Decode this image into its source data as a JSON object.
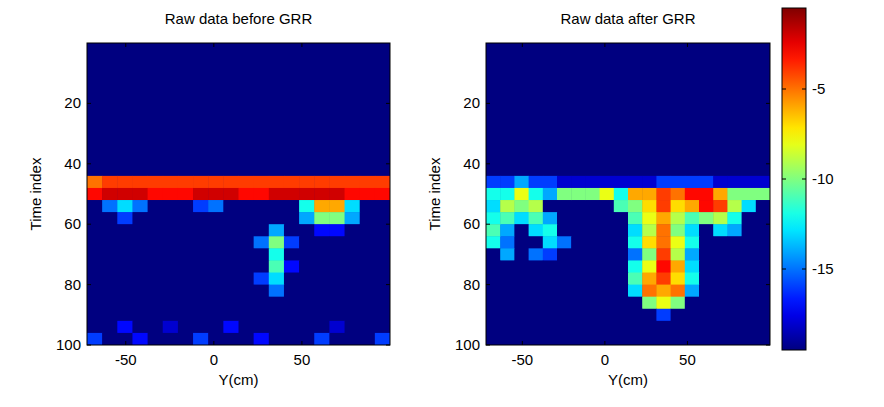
{
  "chart_data": [
    {
      "type": "heatmap",
      "title": "Raw data before GRR",
      "xlabel": "Y(cm)",
      "ylabel": "Time index",
      "xlim": [
        -72,
        100
      ],
      "xticks": [
        -50,
        0,
        50
      ],
      "ylim": [
        0,
        100
      ],
      "yticks": [
        20,
        40,
        60,
        80,
        100
      ],
      "color_range": [
        -19.5,
        -0.5
      ],
      "color_ticks": [
        -5,
        -10,
        -15
      ],
      "cells": [
        [
          -19.5,
          -19.5,
          -19.5,
          -19.5,
          -19.5,
          -19.5,
          -19.5,
          -19.5,
          -19.5,
          -19.5,
          -19.5,
          -19.5,
          -19.5,
          -19.5,
          -19.5,
          -19.5,
          -19.5,
          -19.5,
          -19.5,
          -19.5
        ],
        [
          -19.5,
          -19.5,
          -19.5,
          -19.5,
          -19.5,
          -19.5,
          -19.5,
          -19.5,
          -19.5,
          -19.5,
          -19.5,
          -19.5,
          -19.5,
          -19.5,
          -19.5,
          -19.5,
          -19.5,
          -19.5,
          -19.5,
          -19.5
        ],
        [
          -19.5,
          -19.5,
          -19.5,
          -19.5,
          -19.5,
          -19.5,
          -19.5,
          -19.5,
          -19.5,
          -19.5,
          -19.5,
          -19.5,
          -19.5,
          -19.5,
          -19.5,
          -19.5,
          -19.5,
          -19.5,
          -19.5,
          -19.5
        ],
        [
          -19.5,
          -19.5,
          -19.5,
          -19.5,
          -19.5,
          -19.5,
          -19.5,
          -19.5,
          -19.5,
          -19.5,
          -19.5,
          -19.5,
          -19.5,
          -19.5,
          -19.5,
          -19.5,
          -19.5,
          -19.5,
          -19.5,
          -19.5
        ],
        [
          -19.5,
          -19.5,
          -19.5,
          -19.5,
          -19.5,
          -19.5,
          -19.5,
          -19.5,
          -19.5,
          -19.5,
          -19.5,
          -19.5,
          -19.5,
          -19.5,
          -19.5,
          -19.5,
          -19.5,
          -19.5,
          -19.5,
          -19.5
        ],
        [
          -19.5,
          -19.5,
          -19.5,
          -19.5,
          -19.5,
          -19.5,
          -19.5,
          -19.5,
          -19.5,
          -19.5,
          -19.5,
          -19.5,
          -19.5,
          -19.5,
          -19.5,
          -19.5,
          -19.5,
          -19.5,
          -19.5,
          -19.5
        ],
        [
          -19.5,
          -19.5,
          -19.5,
          -19.5,
          -19.5,
          -19.5,
          -19.5,
          -19.5,
          -19.5,
          -19.5,
          -19.5,
          -19.5,
          -19.5,
          -19.5,
          -19.5,
          -19.5,
          -19.5,
          -19.5,
          -19.5,
          -19.5
        ],
        [
          -19.5,
          -19.5,
          -19.5,
          -19.5,
          -19.5,
          -19.5,
          -19.5,
          -19.5,
          -19.5,
          -19.5,
          -19.5,
          -19.5,
          -19.5,
          -19.5,
          -19.5,
          -19.5,
          -19.5,
          -19.5,
          -19.5,
          -19.5
        ],
        [
          -19.5,
          -19.5,
          -19.5,
          -19.5,
          -19.5,
          -19.5,
          -19.5,
          -19.5,
          -19.5,
          -19.5,
          -19.5,
          -19.5,
          -19.5,
          -19.5,
          -19.5,
          -19.5,
          -19.5,
          -19.5,
          -19.5,
          -19.5
        ],
        [
          -19.5,
          -19.5,
          -19.5,
          -19.5,
          -19.5,
          -19.5,
          -19.5,
          -19.5,
          -19.5,
          -19.5,
          -19.5,
          -19.5,
          -19.5,
          -19.5,
          -19.5,
          -19.5,
          -19.5,
          -19.5,
          -19.5,
          -19.5
        ],
        [
          -19.5,
          -19.5,
          -19.5,
          -19.5,
          -19.5,
          -19.5,
          -19.5,
          -19.5,
          -19.5,
          -19.5,
          -19.5,
          -19.5,
          -19.5,
          -19.5,
          -19.5,
          -19.5,
          -19.5,
          -19.5,
          -19.5,
          -19.5
        ],
        [
          -5,
          -4,
          -4,
          -4,
          -4,
          -4,
          -4,
          -4,
          -4,
          -4,
          -4,
          -4,
          -4,
          -4,
          -4,
          -4,
          -4,
          -4,
          -4,
          -4
        ],
        [
          -3,
          -2,
          -2,
          -2,
          -3,
          -3,
          -3,
          -2,
          -2,
          -2,
          -3,
          -3,
          -2,
          -2,
          -2,
          -2,
          -2,
          -3,
          -3,
          -3
        ],
        [
          -19.5,
          -15,
          -13,
          -15,
          -19.5,
          -19.5,
          -19.5,
          -16,
          -15,
          -19.5,
          -19.5,
          -19.5,
          -19.5,
          -19.5,
          -12,
          -6,
          -6,
          -13,
          -19.5,
          -19.5
        ],
        [
          -19.5,
          -19.5,
          -16,
          -19.5,
          -19.5,
          -19.5,
          -19.5,
          -19.5,
          -19.5,
          -19.5,
          -19.5,
          -19.5,
          -19.5,
          -19.5,
          -14,
          -10,
          -10,
          -14,
          -19.5,
          -19.5
        ],
        [
          -19.5,
          -19.5,
          -19.5,
          -19.5,
          -19.5,
          -19.5,
          -19.5,
          -19.5,
          -19.5,
          -19.5,
          -19.5,
          -19.5,
          -14,
          -19.5,
          -19.5,
          -17,
          -17,
          -19.5,
          -19.5,
          -19.5
        ],
        [
          -19.5,
          -19.5,
          -19.5,
          -19.5,
          -19.5,
          -19.5,
          -19.5,
          -19.5,
          -19.5,
          -19.5,
          -19.5,
          -15,
          -10,
          -16,
          -19.5,
          -19.5,
          -19.5,
          -19.5,
          -19.5,
          -19.5
        ],
        [
          -19.5,
          -19.5,
          -19.5,
          -19.5,
          -19.5,
          -19.5,
          -19.5,
          -19.5,
          -19.5,
          -19.5,
          -19.5,
          -19.5,
          -12,
          -19.5,
          -19.5,
          -19.5,
          -19.5,
          -19.5,
          -19.5,
          -19.5
        ],
        [
          -19.5,
          -19.5,
          -19.5,
          -19.5,
          -19.5,
          -19.5,
          -19.5,
          -19.5,
          -19.5,
          -19.5,
          -19.5,
          -19.5,
          -11,
          -17,
          -19.5,
          -19.5,
          -19.5,
          -19.5,
          -19.5,
          -19.5
        ],
        [
          -19.5,
          -19.5,
          -19.5,
          -19.5,
          -19.5,
          -19.5,
          -19.5,
          -19.5,
          -19.5,
          -19.5,
          -19.5,
          -16,
          -13,
          -19.5,
          -19.5,
          -19.5,
          -19.5,
          -19.5,
          -19.5,
          -19.5
        ],
        [
          -19.5,
          -19.5,
          -19.5,
          -19.5,
          -19.5,
          -19.5,
          -19.5,
          -19.5,
          -19.5,
          -19.5,
          -19.5,
          -19.5,
          -15,
          -19.5,
          -19.5,
          -19.5,
          -19.5,
          -19.5,
          -19.5,
          -19.5
        ],
        [
          -19.5,
          -19.5,
          -19.5,
          -19.5,
          -19.5,
          -19.5,
          -19.5,
          -19.5,
          -19.5,
          -19.5,
          -19.5,
          -19.5,
          -19.5,
          -19.5,
          -19.5,
          -19.5,
          -19.5,
          -19.5,
          -19.5,
          -19.5
        ],
        [
          -19.5,
          -19.5,
          -19.5,
          -19.5,
          -19.5,
          -19.5,
          -19.5,
          -19.5,
          -19.5,
          -19.5,
          -19.5,
          -19.5,
          -19.5,
          -19.5,
          -19.5,
          -19.5,
          -19.5,
          -19.5,
          -19.5,
          -19.5
        ],
        [
          -19.5,
          -19.5,
          -17,
          -19.5,
          -19.5,
          -18,
          -19.5,
          -19.5,
          -19.5,
          -17,
          -19.5,
          -19.5,
          -19.5,
          -19.5,
          -19.5,
          -19.5,
          -18,
          -19.5,
          -19.5,
          -19.5
        ],
        [
          -16,
          -19.5,
          -19.5,
          -17,
          -19.5,
          -19.5,
          -19.5,
          -16,
          -19.5,
          -19.5,
          -19.5,
          -17,
          -19.5,
          -19.5,
          -19.5,
          -16,
          -19.5,
          -19.5,
          -19.5,
          -16
        ]
      ]
    },
    {
      "type": "heatmap",
      "title": "Raw data after GRR",
      "xlabel": "Y(cm)",
      "ylabel": "Time index",
      "xlim": [
        -72,
        100
      ],
      "xticks": [
        -50,
        0,
        50
      ],
      "ylim": [
        0,
        100
      ],
      "yticks": [
        20,
        40,
        60,
        80,
        100
      ],
      "color_range": [
        -19.5,
        -0.5
      ],
      "color_ticks": [
        -5,
        -10,
        -15
      ],
      "cells": [
        [
          -19.5,
          -19.5,
          -19.5,
          -19.5,
          -19.5,
          -19.5,
          -19.5,
          -19.5,
          -19.5,
          -19.5,
          -19.5,
          -19.5,
          -19.5,
          -19.5,
          -19.5,
          -19.5,
          -19.5,
          -19.5,
          -19.5,
          -19.5
        ],
        [
          -19.5,
          -19.5,
          -19.5,
          -19.5,
          -19.5,
          -19.5,
          -19.5,
          -19.5,
          -19.5,
          -19.5,
          -19.5,
          -19.5,
          -19.5,
          -19.5,
          -19.5,
          -19.5,
          -19.5,
          -19.5,
          -19.5,
          -19.5
        ],
        [
          -19.5,
          -19.5,
          -19.5,
          -19.5,
          -19.5,
          -19.5,
          -19.5,
          -19.5,
          -19.5,
          -19.5,
          -19.5,
          -19.5,
          -19.5,
          -19.5,
          -19.5,
          -19.5,
          -19.5,
          -19.5,
          -19.5,
          -19.5
        ],
        [
          -19.5,
          -19.5,
          -19.5,
          -19.5,
          -19.5,
          -19.5,
          -19.5,
          -19.5,
          -19.5,
          -19.5,
          -19.5,
          -19.5,
          -19.5,
          -19.5,
          -19.5,
          -19.5,
          -19.5,
          -19.5,
          -19.5,
          -19.5
        ],
        [
          -19.5,
          -19.5,
          -19.5,
          -19.5,
          -19.5,
          -19.5,
          -19.5,
          -19.5,
          -19.5,
          -19.5,
          -19.5,
          -19.5,
          -19.5,
          -19.5,
          -19.5,
          -19.5,
          -19.5,
          -19.5,
          -19.5,
          -19.5
        ],
        [
          -19.5,
          -19.5,
          -19.5,
          -19.5,
          -19.5,
          -19.5,
          -19.5,
          -19.5,
          -19.5,
          -19.5,
          -19.5,
          -19.5,
          -19.5,
          -19.5,
          -19.5,
          -19.5,
          -19.5,
          -19.5,
          -19.5,
          -19.5
        ],
        [
          -19.5,
          -19.5,
          -19.5,
          -19.5,
          -19.5,
          -19.5,
          -19.5,
          -19.5,
          -19.5,
          -19.5,
          -19.5,
          -19.5,
          -19.5,
          -19.5,
          -19.5,
          -19.5,
          -19.5,
          -19.5,
          -19.5,
          -19.5
        ],
        [
          -19.5,
          -19.5,
          -19.5,
          -19.5,
          -19.5,
          -19.5,
          -19.5,
          -19.5,
          -19.5,
          -19.5,
          -19.5,
          -19.5,
          -19.5,
          -19.5,
          -19.5,
          -19.5,
          -19.5,
          -19.5,
          -19.5,
          -19.5
        ],
        [
          -19.5,
          -19.5,
          -19.5,
          -19.5,
          -19.5,
          -19.5,
          -19.5,
          -19.5,
          -19.5,
          -19.5,
          -19.5,
          -19.5,
          -19.5,
          -19.5,
          -19.5,
          -19.5,
          -19.5,
          -19.5,
          -19.5,
          -19.5
        ],
        [
          -19.5,
          -19.5,
          -19.5,
          -19.5,
          -19.5,
          -19.5,
          -19.5,
          -19.5,
          -19.5,
          -19.5,
          -19.5,
          -19.5,
          -19.5,
          -19.5,
          -19.5,
          -19.5,
          -19.5,
          -19.5,
          -19.5,
          -19.5
        ],
        [
          -19.5,
          -19.5,
          -19.5,
          -19.5,
          -19.5,
          -19.5,
          -19.5,
          -19.5,
          -19.5,
          -19.5,
          -19.5,
          -19.5,
          -19.5,
          -19.5,
          -19.5,
          -19.5,
          -19.5,
          -19.5,
          -19.5,
          -19.5
        ],
        [
          -16,
          -16,
          -14,
          -16,
          -16,
          -18,
          -18,
          -18,
          -18,
          -18,
          -18,
          -18,
          -16,
          -16,
          -16,
          -16,
          -18,
          -18,
          -18,
          -18
        ],
        [
          -12,
          -12,
          -8,
          -12,
          -14,
          -10,
          -10,
          -10,
          -8,
          -12,
          -6,
          -6,
          -4,
          -5,
          -3,
          -3,
          -6,
          -10,
          -10,
          -10
        ],
        [
          -13,
          -9,
          -10,
          -9,
          -19.5,
          -19.5,
          -19.5,
          -19.5,
          -19.5,
          -11,
          -10,
          -7,
          -4,
          -7,
          -6,
          -3,
          -4,
          -9,
          -13,
          -19.5
        ],
        [
          -12,
          -11,
          -13,
          -11,
          -14,
          -19.5,
          -19.5,
          -19.5,
          -19.5,
          -19.5,
          -11,
          -8,
          -6,
          -9,
          -11,
          -10,
          -9,
          -12,
          -19.5,
          -19.5
        ],
        [
          -11,
          -14,
          -19.5,
          -13,
          -12,
          -19.5,
          -19.5,
          -19.5,
          -19.5,
          -19.5,
          -13,
          -9,
          -5,
          -10,
          -13,
          -19.5,
          -13,
          -14,
          -19.5,
          -19.5
        ],
        [
          -12,
          -15,
          -19.5,
          -19.5,
          -13,
          -15,
          -19.5,
          -19.5,
          -19.5,
          -19.5,
          -12,
          -7,
          -5,
          -8,
          -12,
          -19.5,
          -19.5,
          -19.5,
          -19.5,
          -19.5
        ],
        [
          -19.5,
          -14,
          -19.5,
          -15,
          -16,
          -19.5,
          -19.5,
          -19.5,
          -19.5,
          -19.5,
          -15,
          -10,
          -4,
          -9,
          -14,
          -19.5,
          -19.5,
          -19.5,
          -19.5,
          -19.5
        ],
        [
          -19.5,
          -19.5,
          -19.5,
          -19.5,
          -19.5,
          -19.5,
          -19.5,
          -19.5,
          -19.5,
          -19.5,
          -12,
          -8,
          -3,
          -6,
          -13,
          -19.5,
          -19.5,
          -19.5,
          -19.5,
          -19.5
        ],
        [
          -19.5,
          -19.5,
          -19.5,
          -19.5,
          -19.5,
          -19.5,
          -19.5,
          -19.5,
          -19.5,
          -19.5,
          -11,
          -6,
          -4,
          -7,
          -12,
          -19.5,
          -19.5,
          -19.5,
          -19.5,
          -19.5
        ],
        [
          -19.5,
          -19.5,
          -19.5,
          -19.5,
          -19.5,
          -19.5,
          -19.5,
          -19.5,
          -19.5,
          -19.5,
          -13,
          -5,
          -6,
          -5,
          -14,
          -19.5,
          -19.5,
          -19.5,
          -19.5,
          -19.5
        ],
        [
          -19.5,
          -19.5,
          -19.5,
          -19.5,
          -19.5,
          -19.5,
          -19.5,
          -19.5,
          -19.5,
          -19.5,
          -19.5,
          -10,
          -8,
          -10,
          -19.5,
          -19.5,
          -19.5,
          -19.5,
          -19.5,
          -19.5
        ],
        [
          -19.5,
          -19.5,
          -19.5,
          -19.5,
          -19.5,
          -19.5,
          -19.5,
          -19.5,
          -19.5,
          -19.5,
          -19.5,
          -19.5,
          -16,
          -19.5,
          -19.5,
          -19.5,
          -19.5,
          -19.5,
          -19.5,
          -19.5
        ],
        [
          -19.5,
          -19.5,
          -19.5,
          -19.5,
          -19.5,
          -19.5,
          -19.5,
          -19.5,
          -19.5,
          -19.5,
          -19.5,
          -19.5,
          -19.5,
          -19.5,
          -19.5,
          -19.5,
          -19.5,
          -19.5,
          -19.5,
          -19.5
        ],
        [
          -19.5,
          -19.5,
          -19.5,
          -19.5,
          -19.5,
          -19.5,
          -19.5,
          -19.5,
          -19.5,
          -19.5,
          -19.5,
          -19.5,
          -19.5,
          -19.5,
          -19.5,
          -19.5,
          -19.5,
          -19.5,
          -19.5,
          -19.5
        ]
      ]
    }
  ]
}
